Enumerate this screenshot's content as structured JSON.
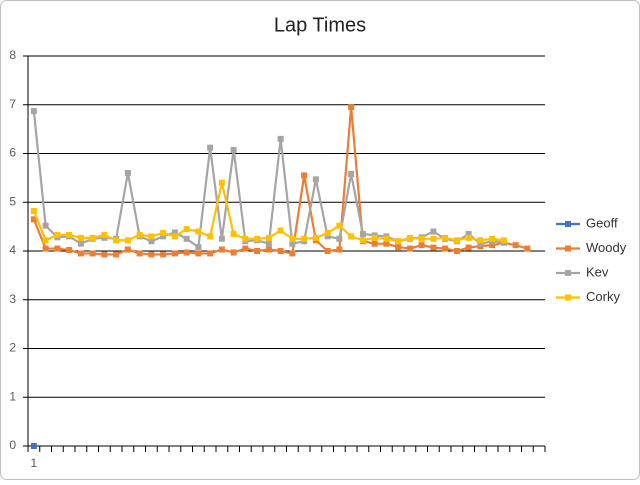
{
  "chart_data": {
    "type": "line",
    "title": "Lap Times",
    "categories": [
      1,
      null,
      null,
      null,
      null,
      null,
      null,
      null,
      null,
      null,
      null,
      null,
      null,
      null,
      null,
      null,
      null,
      null,
      null,
      null,
      null,
      null,
      null,
      null,
      null,
      null,
      null,
      null,
      null,
      null,
      null,
      null,
      null,
      null,
      null,
      null,
      null,
      null,
      null,
      null,
      null,
      null,
      null,
      null
    ],
    "series": [
      {
        "name": "Geoff",
        "color": "#4472c4",
        "values": [
          0,
          null,
          null,
          null,
          null,
          null,
          null,
          null,
          null,
          null,
          null,
          null,
          null,
          null,
          null,
          null,
          null,
          null,
          null,
          null,
          null,
          null,
          null,
          null,
          null,
          null,
          null,
          null,
          null,
          null,
          null,
          null,
          null,
          null,
          null,
          null,
          null,
          null,
          null,
          null,
          null,
          null,
          null,
          null
        ]
      },
      {
        "name": "Woody",
        "color": "#ed7d31",
        "values": [
          4.65,
          4.05,
          4.05,
          4.02,
          3.95,
          3.95,
          3.93,
          3.93,
          4.03,
          3.95,
          3.93,
          3.93,
          3.95,
          3.97,
          3.95,
          3.95,
          4.03,
          3.97,
          4.05,
          4.0,
          4.03,
          4.0,
          3.95,
          5.55,
          4.22,
          4.0,
          4.03,
          6.95,
          4.2,
          4.15,
          4.15,
          4.08,
          4.05,
          4.12,
          4.07,
          4.05,
          4.0,
          4.07,
          4.1,
          4.12,
          4.17,
          4.12,
          4.05,
          null
        ]
      },
      {
        "name": "Kev",
        "color": "#a5a5a5",
        "values": [
          6.87,
          4.52,
          4.28,
          4.3,
          4.15,
          4.25,
          4.27,
          4.25,
          5.6,
          4.3,
          4.2,
          4.3,
          4.38,
          4.25,
          4.08,
          6.12,
          4.25,
          6.07,
          4.2,
          4.22,
          4.15,
          6.3,
          4.15,
          4.2,
          5.47,
          4.3,
          4.25,
          5.58,
          4.35,
          4.32,
          4.3,
          4.2,
          4.25,
          4.28,
          4.4,
          4.25,
          4.2,
          4.35,
          4.15,
          4.2,
          4.18,
          null,
          null,
          null
        ]
      },
      {
        "name": "Corky",
        "color": "#ffc000",
        "values": [
          4.82,
          4.22,
          4.33,
          4.33,
          4.27,
          4.27,
          4.33,
          4.22,
          4.22,
          4.33,
          4.3,
          4.37,
          4.3,
          4.45,
          4.4,
          4.3,
          5.4,
          4.35,
          4.25,
          4.25,
          4.27,
          4.42,
          4.25,
          4.25,
          4.27,
          4.37,
          4.52,
          4.3,
          4.22,
          4.27,
          4.25,
          4.2,
          4.27,
          4.25,
          4.25,
          4.27,
          4.22,
          4.27,
          4.22,
          4.25,
          4.22,
          null,
          null,
          null
        ]
      }
    ],
    "ylim": [
      0,
      8
    ],
    "yticks": [
      0,
      1,
      2,
      3,
      4,
      5,
      6,
      7,
      8
    ],
    "grid": true,
    "legend": "right"
  }
}
